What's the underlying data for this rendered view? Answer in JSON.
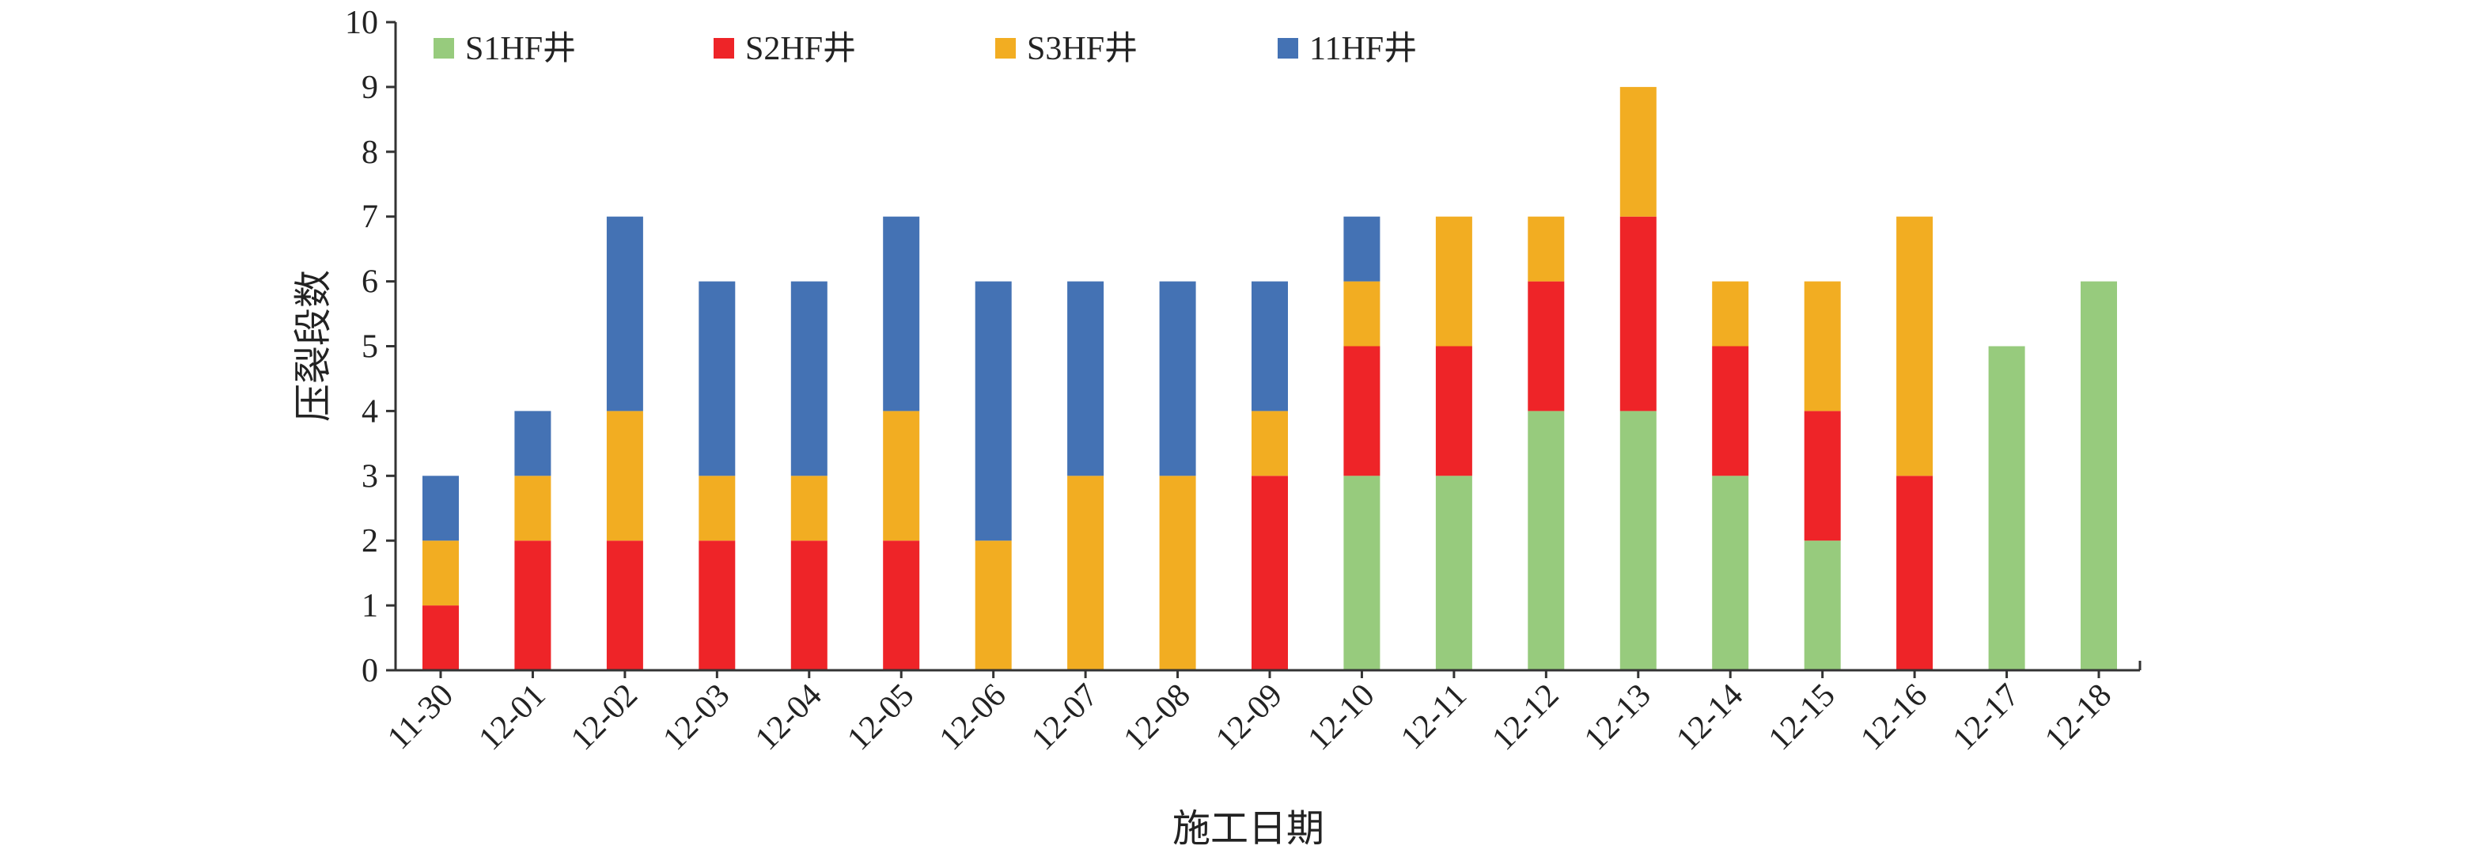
{
  "chart_data": {
    "type": "bar",
    "stacked": true,
    "title": "",
    "xlabel": "施工日期",
    "ylabel": "压裂段数",
    "ylim": [
      0,
      10
    ],
    "yticks": [
      0,
      1,
      2,
      3,
      4,
      5,
      6,
      7,
      8,
      9,
      10
    ],
    "legend_position": "top",
    "grid": false,
    "categories": [
      "11-30",
      "12-01",
      "12-02",
      "12-03",
      "12-04",
      "12-05",
      "12-06",
      "12-07",
      "12-08",
      "12-09",
      "12-10",
      "12-11",
      "12-12",
      "12-13",
      "12-14",
      "12-15",
      "12-16",
      "12-17",
      "12-18"
    ],
    "series": [
      {
        "name": "S1HF井",
        "color": "#97CB7D",
        "values": [
          0,
          0,
          0,
          0,
          0,
          0,
          0,
          0,
          0,
          0,
          3,
          3,
          4,
          4,
          3,
          2,
          0,
          5,
          6
        ]
      },
      {
        "name": "S2HF井",
        "color": "#EE2428",
        "values": [
          1,
          2,
          2,
          2,
          2,
          2,
          0,
          0,
          0,
          3,
          2,
          2,
          2,
          3,
          2,
          2,
          3,
          0,
          0
        ]
      },
      {
        "name": "S3HF井",
        "color": "#F2AD22",
        "values": [
          1,
          1,
          2,
          1,
          1,
          2,
          2,
          3,
          3,
          1,
          1,
          2,
          1,
          2,
          1,
          2,
          4,
          0,
          0
        ]
      },
      {
        "name": "11HF井",
        "color": "#4472B4",
        "values": [
          1,
          1,
          3,
          3,
          3,
          3,
          4,
          3,
          3,
          2,
          1,
          0,
          0,
          0,
          0,
          0,
          0,
          0,
          0
        ]
      }
    ]
  }
}
